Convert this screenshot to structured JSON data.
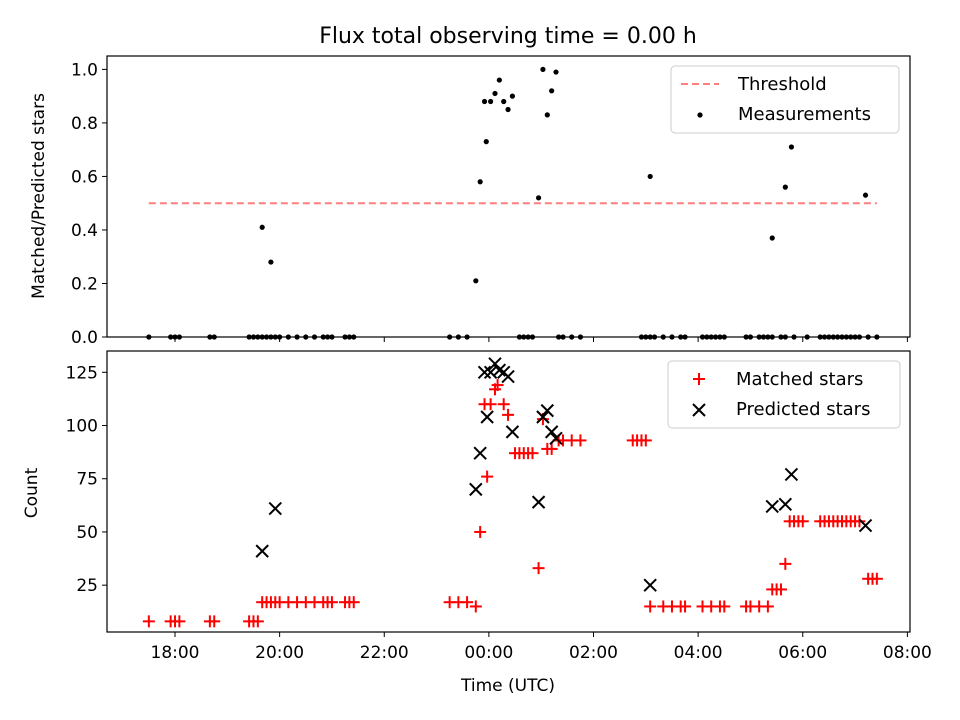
{
  "figure": {
    "title": "Flux total observing time = 0.00 h"
  },
  "chart_data": [
    {
      "type": "scatter",
      "title": "Flux total observing time = 0.00 h",
      "xlabel": "",
      "ylabel": "Matched/Predicted stars",
      "xlim_hours": [
        -7.3,
        8.05
      ],
      "ylim": [
        0,
        1.05
      ],
      "yticks": [
        0.0,
        0.2,
        0.4,
        0.6,
        0.8,
        1.0
      ],
      "ytick_labels": [
        "0.0",
        "0.2",
        "0.4",
        "0.6",
        "0.8",
        "1.0"
      ],
      "legend": {
        "placement": "top-right",
        "entries": [
          "Threshold",
          "Measurements"
        ]
      },
      "grid": false,
      "colors": {
        "threshold": "#ff7f7f",
        "measurements": "#000000"
      },
      "threshold": {
        "name": "Threshold",
        "value": 0.5,
        "x_start": "17:30",
        "x_end": "07:25"
      },
      "series": [
        {
          "name": "Measurements",
          "marker": "dot",
          "points": [
            [
              "17:30",
              0.0
            ],
            [
              "17:55",
              0.0
            ],
            [
              "18:00",
              0.0
            ],
            [
              "18:05",
              0.0
            ],
            [
              "18:40",
              0.0
            ],
            [
              "18:45",
              0.0
            ],
            [
              "19:25",
              0.0
            ],
            [
              "19:30",
              0.0
            ],
            [
              "19:35",
              0.0
            ],
            [
              "19:40",
              0.0
            ],
            [
              "19:45",
              0.0
            ],
            [
              "19:50",
              0.0
            ],
            [
              "19:55",
              0.0
            ],
            [
              "20:00",
              0.0
            ],
            [
              "20:10",
              0.0
            ],
            [
              "20:20",
              0.0
            ],
            [
              "20:30",
              0.0
            ],
            [
              "20:40",
              0.0
            ],
            [
              "20:50",
              0.0
            ],
            [
              "20:55",
              0.0
            ],
            [
              "21:00",
              0.0
            ],
            [
              "21:15",
              0.0
            ],
            [
              "21:20",
              0.0
            ],
            [
              "21:25",
              0.0
            ],
            [
              "23:15",
              0.0
            ],
            [
              "23:25",
              0.0
            ],
            [
              "23:35",
              0.0
            ],
            [
              "00:35",
              0.0
            ],
            [
              "00:40",
              0.0
            ],
            [
              "00:45",
              0.0
            ],
            [
              "00:50",
              0.0
            ],
            [
              "01:20",
              0.0
            ],
            [
              "01:25",
              0.0
            ],
            [
              "01:35",
              0.0
            ],
            [
              "01:45",
              0.0
            ],
            [
              "02:55",
              0.0
            ],
            [
              "03:00",
              0.0
            ],
            [
              "03:05",
              0.0
            ],
            [
              "03:10",
              0.0
            ],
            [
              "03:20",
              0.0
            ],
            [
              "03:30",
              0.0
            ],
            [
              "03:40",
              0.0
            ],
            [
              "03:45",
              0.0
            ],
            [
              "04:05",
              0.0
            ],
            [
              "04:10",
              0.0
            ],
            [
              "04:15",
              0.0
            ],
            [
              "04:20",
              0.0
            ],
            [
              "04:25",
              0.0
            ],
            [
              "04:30",
              0.0
            ],
            [
              "04:55",
              0.0
            ],
            [
              "05:00",
              0.0
            ],
            [
              "05:10",
              0.0
            ],
            [
              "05:15",
              0.0
            ],
            [
              "05:20",
              0.0
            ],
            [
              "05:25",
              0.0
            ],
            [
              "05:35",
              0.0
            ],
            [
              "05:40",
              0.0
            ],
            [
              "05:50",
              0.0
            ],
            [
              "06:05",
              0.0
            ],
            [
              "06:20",
              0.0
            ],
            [
              "06:25",
              0.0
            ],
            [
              "06:30",
              0.0
            ],
            [
              "06:35",
              0.0
            ],
            [
              "06:40",
              0.0
            ],
            [
              "06:45",
              0.0
            ],
            [
              "06:50",
              0.0
            ],
            [
              "06:55",
              0.0
            ],
            [
              "07:00",
              0.0
            ],
            [
              "07:05",
              0.0
            ],
            [
              "07:15",
              0.0
            ],
            [
              "07:25",
              0.0
            ],
            [
              "19:40",
              0.41
            ],
            [
              "19:50",
              0.28
            ],
            [
              "23:45",
              0.21
            ],
            [
              "23:50",
              0.58
            ],
            [
              "23:55",
              0.88
            ],
            [
              "23:57",
              0.73
            ],
            [
              "00:02",
              0.88
            ],
            [
              "00:07",
              0.91
            ],
            [
              "00:12",
              0.96
            ],
            [
              "00:17",
              0.88
            ],
            [
              "00:22",
              0.85
            ],
            [
              "00:27",
              0.9
            ],
            [
              "00:57",
              0.52
            ],
            [
              "01:02",
              1.0
            ],
            [
              "01:07",
              0.83
            ],
            [
              "01:12",
              0.92
            ],
            [
              "01:17",
              0.99
            ],
            [
              "03:05",
              0.6
            ],
            [
              "05:25",
              0.37
            ],
            [
              "05:40",
              0.56
            ],
            [
              "05:47",
              0.71
            ],
            [
              "07:12",
              0.53
            ]
          ]
        }
      ]
    },
    {
      "type": "scatter",
      "title": "",
      "xlabel": "Time (UTC)",
      "ylabel": "Count",
      "xlim_hours": [
        -7.3,
        8.05
      ],
      "ylim": [
        3,
        135
      ],
      "yticks": [
        25,
        50,
        75,
        100,
        125
      ],
      "ytick_labels": [
        "25",
        "50",
        "75",
        "100",
        "125"
      ],
      "xticks": [
        "18:00",
        "20:00",
        "22:00",
        "00:00",
        "02:00",
        "04:00",
        "06:00",
        "08:00"
      ],
      "legend": {
        "placement": "top-right",
        "entries": [
          "Matched stars",
          "Predicted stars"
        ]
      },
      "grid": false,
      "colors": {
        "matched": "#ff0000",
        "predicted": "#000000"
      },
      "series": [
        {
          "name": "Matched stars",
          "marker": "plus",
          "points": [
            [
              "17:30",
              8
            ],
            [
              "17:55",
              8
            ],
            [
              "18:00",
              8
            ],
            [
              "18:05",
              8
            ],
            [
              "18:40",
              8
            ],
            [
              "18:45",
              8
            ],
            [
              "19:25",
              8
            ],
            [
              "19:30",
              8
            ],
            [
              "19:35",
              8
            ],
            [
              "19:40",
              17
            ],
            [
              "19:45",
              17
            ],
            [
              "19:50",
              17
            ],
            [
              "19:55",
              17
            ],
            [
              "20:00",
              17
            ],
            [
              "20:10",
              17
            ],
            [
              "20:20",
              17
            ],
            [
              "20:30",
              17
            ],
            [
              "20:40",
              17
            ],
            [
              "20:50",
              17
            ],
            [
              "20:55",
              17
            ],
            [
              "21:00",
              17
            ],
            [
              "21:15",
              17
            ],
            [
              "21:20",
              17
            ],
            [
              "21:25",
              17
            ],
            [
              "23:15",
              17
            ],
            [
              "23:25",
              17
            ],
            [
              "23:35",
              17
            ],
            [
              "23:45",
              15
            ],
            [
              "23:50",
              50
            ],
            [
              "23:55",
              110
            ],
            [
              "23:58",
              76
            ],
            [
              "00:02",
              110
            ],
            [
              "00:07",
              117
            ],
            [
              "00:10",
              119
            ],
            [
              "00:17",
              110
            ],
            [
              "00:22",
              105
            ],
            [
              "00:30",
              87
            ],
            [
              "00:35",
              87
            ],
            [
              "00:40",
              87
            ],
            [
              "00:45",
              87
            ],
            [
              "00:50",
              87
            ],
            [
              "00:57",
              33
            ],
            [
              "01:02",
              103
            ],
            [
              "01:07",
              89
            ],
            [
              "01:12",
              89
            ],
            [
              "01:20",
              93
            ],
            [
              "01:25",
              93
            ],
            [
              "01:35",
              93
            ],
            [
              "01:45",
              93
            ],
            [
              "02:45",
              93
            ],
            [
              "02:50",
              93
            ],
            [
              "02:55",
              93
            ],
            [
              "03:00",
              93
            ],
            [
              "03:05",
              15
            ],
            [
              "03:20",
              15
            ],
            [
              "03:30",
              15
            ],
            [
              "03:40",
              15
            ],
            [
              "03:45",
              15
            ],
            [
              "04:05",
              15
            ],
            [
              "04:15",
              15
            ],
            [
              "04:25",
              15
            ],
            [
              "04:30",
              15
            ],
            [
              "04:55",
              15
            ],
            [
              "05:00",
              15
            ],
            [
              "05:10",
              15
            ],
            [
              "05:20",
              15
            ],
            [
              "05:25",
              23
            ],
            [
              "05:30",
              23
            ],
            [
              "05:35",
              23
            ],
            [
              "05:40",
              35
            ],
            [
              "05:45",
              55
            ],
            [
              "05:50",
              55
            ],
            [
              "05:55",
              55
            ],
            [
              "06:00",
              55
            ],
            [
              "06:20",
              55
            ],
            [
              "06:25",
              55
            ],
            [
              "06:30",
              55
            ],
            [
              "06:35",
              55
            ],
            [
              "06:40",
              55
            ],
            [
              "06:45",
              55
            ],
            [
              "06:50",
              55
            ],
            [
              "06:55",
              55
            ],
            [
              "07:00",
              55
            ],
            [
              "07:05",
              55
            ],
            [
              "07:15",
              28
            ],
            [
              "07:20",
              28
            ],
            [
              "07:25",
              28
            ]
          ]
        },
        {
          "name": "Predicted stars",
          "marker": "x",
          "points": [
            [
              "19:40",
              41
            ],
            [
              "19:55",
              61
            ],
            [
              "23:45",
              70
            ],
            [
              "23:50",
              87
            ],
            [
              "23:55",
              125
            ],
            [
              "23:58",
              104
            ],
            [
              "00:02",
              125
            ],
            [
              "00:07",
              129
            ],
            [
              "00:12",
              126
            ],
            [
              "00:17",
              125
            ],
            [
              "00:22",
              123
            ],
            [
              "00:27",
              97
            ],
            [
              "00:57",
              64
            ],
            [
              "01:02",
              104
            ],
            [
              "01:07",
              107
            ],
            [
              "01:12",
              97
            ],
            [
              "01:17",
              94
            ],
            [
              "03:05",
              25
            ],
            [
              "05:25",
              62
            ],
            [
              "05:40",
              63
            ],
            [
              "05:47",
              77
            ],
            [
              "07:12",
              53
            ]
          ]
        }
      ]
    }
  ]
}
